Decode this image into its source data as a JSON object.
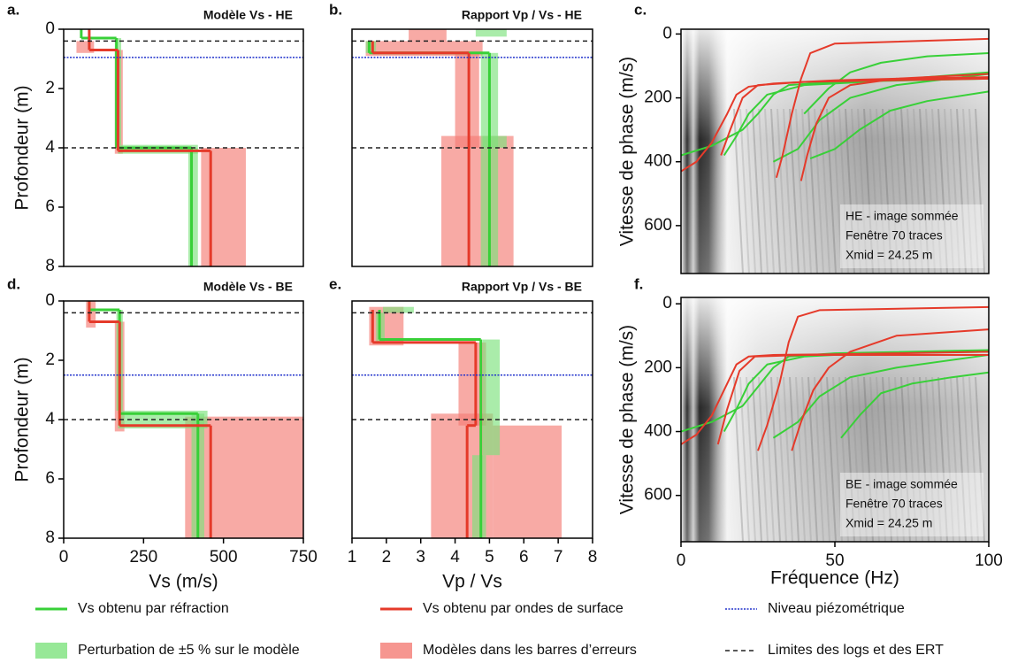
{
  "chart_data": [
    {
      "type": "profile",
      "panel": "a.",
      "title": "Modèle Vs - HE",
      "xlim": [
        0,
        750
      ],
      "ylim": [
        0,
        8
      ],
      "yticks": [
        0,
        2,
        4,
        6,
        8
      ],
      "ylabel": "Profondeur (m)",
      "refraction": {
        "color": "#38d038",
        "tops": [
          0,
          0.3,
          4.0
        ],
        "values": [
          55,
          165,
          400
        ]
      },
      "surface": {
        "color": "#e53a2a",
        "tops": [
          0,
          0.7,
          4.1
        ],
        "values": [
          80,
          170,
          460
        ]
      },
      "perturbation": {
        "color": "#7de27d",
        "layers": [
          {
            "depth": [
              0.3,
              3.9
            ],
            "range": [
              160,
              180
            ]
          },
          {
            "depth": [
              3.9,
              4.2
            ],
            "range": [
              170,
              420
            ]
          },
          {
            "depth": [
              4.0,
              8
            ],
            "range": [
              390,
              420
            ]
          }
        ]
      },
      "error_models": {
        "color": "#f47c74",
        "layers": [
          {
            "depth": [
              0.4,
              0.8
            ],
            "range": [
              40,
              95
            ]
          },
          {
            "depth": [
              0.7,
              4.2
            ],
            "range": [
              160,
              185
            ]
          },
          {
            "depth": [
              4.0,
              8
            ],
            "range": [
              430,
              570
            ]
          }
        ]
      },
      "water_level": {
        "color": "#2233cc",
        "depth": 0.95
      },
      "log_limits": {
        "color": "#222",
        "depths": [
          0.4,
          4.0
        ]
      }
    },
    {
      "type": "profile",
      "panel": "b.",
      "title": "Rapport Vp / Vs - HE",
      "xlim": [
        1,
        8
      ],
      "ylim": [
        0,
        8
      ],
      "refraction": {
        "color": "#38d038",
        "tops": [
          0.4,
          0.8
        ],
        "values": [
          1.5,
          5.0
        ]
      },
      "surface": {
        "color": "#e53a2a",
        "tops": [
          0.4,
          0.8
        ],
        "values": [
          1.6,
          4.4
        ]
      },
      "perturbation": {
        "color": "#7de27d",
        "layers": [
          {
            "depth": [
              0,
              0.25
            ],
            "range": [
              4.6,
              5.5
            ]
          },
          {
            "depth": [
              0.4,
              0.8
            ],
            "range": [
              1.4,
              1.7
            ]
          },
          {
            "depth": [
              0.8,
              8
            ],
            "range": [
              4.75,
              5.25
            ]
          },
          {
            "depth": [
              3.6,
              4.0
            ],
            "range": [
              4.8,
              5.5
            ]
          }
        ]
      },
      "error_models": {
        "color": "#f47c74",
        "layers": [
          {
            "depth": [
              0,
              0.4
            ],
            "range": [
              2.65,
              3.75
            ]
          },
          {
            "depth": [
              0.4,
              0.9
            ],
            "range": [
              1.4,
              4.8
            ]
          },
          {
            "depth": [
              0.8,
              4.0
            ],
            "range": [
              4.0,
              4.7
            ]
          },
          {
            "depth": [
              3.6,
              8
            ],
            "range": [
              3.6,
              5.7
            ]
          }
        ]
      },
      "water_level": {
        "color": "#2233cc",
        "depth": 0.95
      },
      "log_limits": {
        "color": "#222",
        "depths": [
          0.4,
          4.0
        ]
      }
    },
    {
      "type": "dispersion",
      "panel": "c.",
      "xlim": [
        0,
        100
      ],
      "ylim": [
        -15,
        750
      ],
      "yticks": [
        0,
        200,
        400,
        600
      ],
      "ylabel": "Vitesse de phase (m/s)",
      "annotation": [
        "HE - image sommée",
        "Fenêtre 70 traces",
        "Xmid = 24.25 m"
      ],
      "curves": [
        {
          "color": "#38d038",
          "x": [
            0,
            10,
            20,
            25,
            30,
            35,
            50,
            100
          ],
          "y": [
            380,
            350,
            300,
            250,
            190,
            160,
            150,
            140
          ]
        },
        {
          "color": "#38d038",
          "x": [
            14,
            18,
            22,
            28,
            40,
            60,
            100
          ],
          "y": [
            380,
            320,
            250,
            190,
            160,
            150,
            120
          ]
        },
        {
          "color": "#38d038",
          "x": [
            30,
            38,
            45,
            55,
            70,
            100
          ],
          "y": [
            400,
            360,
            270,
            200,
            160,
            125
          ]
        },
        {
          "color": "#38d038",
          "x": [
            42,
            50,
            58,
            68,
            80,
            100
          ],
          "y": [
            390,
            360,
            300,
            240,
            210,
            180
          ]
        },
        {
          "color": "#38d038",
          "x": [
            40,
            48,
            55,
            65,
            80,
            100
          ],
          "y": [
            250,
            170,
            120,
            90,
            70,
            60
          ]
        },
        {
          "color": "#e53a2a",
          "x": [
            0,
            5,
            10,
            15,
            18,
            22,
            30,
            50,
            70,
            100
          ],
          "y": [
            430,
            400,
            340,
            250,
            190,
            165,
            155,
            145,
            140,
            135
          ]
        },
        {
          "color": "#e53a2a",
          "x": [
            13,
            16,
            20,
            25,
            40,
            100
          ],
          "y": [
            380,
            300,
            200,
            160,
            150,
            140
          ]
        },
        {
          "color": "#e53a2a",
          "x": [
            31,
            33,
            36,
            39,
            42,
            50,
            100
          ],
          "y": [
            450,
            380,
            250,
            140,
            60,
            30,
            15
          ]
        },
        {
          "color": "#e53a2a",
          "x": [
            39,
            41,
            44,
            48,
            55,
            70,
            100
          ],
          "y": [
            460,
            380,
            280,
            200,
            160,
            140,
            125
          ]
        }
      ]
    },
    {
      "type": "profile",
      "panel": "d.",
      "title": "Modèle Vs - BE",
      "xlim": [
        0,
        750
      ],
      "xticks": [
        0,
        250,
        500,
        750
      ],
      "xlabel": "Vs (m/s)",
      "ylim": [
        0,
        8
      ],
      "yticks": [
        0,
        2,
        4,
        6,
        8
      ],
      "ylabel": "Profondeur (m)",
      "refraction": {
        "color": "#38d038",
        "tops": [
          0,
          0.3,
          3.8
        ],
        "values": [
          80,
          175,
          420
        ]
      },
      "surface": {
        "color": "#e53a2a",
        "tops": [
          0,
          0.7,
          4.2
        ],
        "values": [
          80,
          175,
          460
        ]
      },
      "perturbation": {
        "color": "#7de27d",
        "layers": [
          {
            "depth": [
              0.3,
              3.7
            ],
            "range": [
              165,
              185
            ]
          },
          {
            "depth": [
              3.7,
              4.3
            ],
            "range": [
              170,
              450
            ]
          },
          {
            "depth": [
              3.8,
              8
            ],
            "range": [
              400,
              440
            ]
          }
        ]
      },
      "error_models": {
        "color": "#f47c74",
        "layers": [
          {
            "depth": [
              0,
              0.9
            ],
            "range": [
              70,
              100
            ]
          },
          {
            "depth": [
              0.7,
              4.4
            ],
            "range": [
              160,
              190
            ]
          },
          {
            "depth": [
              3.9,
              8
            ],
            "range": [
              380,
              750
            ]
          }
        ]
      },
      "water_level": {
        "color": "#2233cc",
        "depth": 2.5
      },
      "log_limits": {
        "color": "#222",
        "depths": [
          0.4,
          4.0
        ]
      }
    },
    {
      "type": "profile",
      "panel": "e.",
      "title": "Rapport Vp / Vs - BE",
      "xlim": [
        1,
        8
      ],
      "xticks": [
        1,
        2,
        3,
        4,
        5,
        6,
        7,
        8
      ],
      "xlabel": "Vp / Vs",
      "ylim": [
        0,
        8
      ],
      "refraction": {
        "color": "#38d038",
        "tops": [
          0.3,
          1.3
        ],
        "values": [
          1.8,
          4.75
        ]
      },
      "surface": {
        "color": "#e53a2a",
        "tops": [
          0.3,
          1.4,
          4.2
        ],
        "values": [
          1.6,
          4.6,
          4.35
        ]
      },
      "perturbation": {
        "color": "#7de27d",
        "layers": [
          {
            "depth": [
              0.2,
              0.4
            ],
            "range": [
              1.9,
              2.8
            ]
          },
          {
            "depth": [
              0.4,
              1.4
            ],
            "range": [
              1.7,
              1.95
            ]
          },
          {
            "depth": [
              1.3,
              5.2
            ],
            "range": [
              4.8,
              5.3
            ]
          },
          {
            "depth": [
              5.2,
              8
            ],
            "range": [
              4.5,
              4.9
            ]
          }
        ]
      },
      "error_models": {
        "color": "#f47c74",
        "layers": [
          {
            "depth": [
              0.2,
              1.5
            ],
            "range": [
              1.5,
              2.5
            ]
          },
          {
            "depth": [
              1.4,
              4.2
            ],
            "range": [
              4.1,
              4.9
            ]
          },
          {
            "depth": [
              3.8,
              8
            ],
            "range": [
              3.3,
              5.1
            ]
          },
          {
            "depth": [
              4.2,
              8
            ],
            "range": [
              5.1,
              7.1
            ]
          }
        ]
      },
      "water_level": {
        "color": "#2233cc",
        "depth": 2.5
      },
      "log_limits": {
        "color": "#222",
        "depths": [
          0.4,
          4.0
        ]
      }
    },
    {
      "type": "dispersion",
      "panel": "f.",
      "xlim": [
        0,
        100
      ],
      "xticks": [
        0,
        50,
        100
      ],
      "xlabel": "Fréquence (Hz)",
      "ylim": [
        -20,
        745
      ],
      "yticks": [
        0,
        200,
        400,
        600
      ],
      "ylabel": "Vitesse de phase (m/s)",
      "annotation": [
        "BE - image sommée",
        "Fenêtre 70 traces",
        "Xmid = 24.25 m"
      ],
      "curves": [
        {
          "color": "#38d038",
          "x": [
            0,
            10,
            20,
            25,
            30,
            35,
            50,
            100
          ],
          "y": [
            400,
            370,
            320,
            260,
            200,
            165,
            155,
            145
          ]
        },
        {
          "color": "#38d038",
          "x": [
            14,
            18,
            22,
            28,
            40,
            60,
            100
          ],
          "y": [
            400,
            330,
            250,
            190,
            165,
            155,
            150
          ]
        },
        {
          "color": "#38d038",
          "x": [
            30,
            38,
            45,
            55,
            70,
            100
          ],
          "y": [
            420,
            370,
            290,
            230,
            200,
            160
          ]
        },
        {
          "color": "#38d038",
          "x": [
            52,
            58,
            65,
            75,
            88,
            100
          ],
          "y": [
            420,
            350,
            280,
            250,
            230,
            215
          ]
        },
        {
          "color": "#e53a2a",
          "x": [
            0,
            5,
            10,
            15,
            18,
            22,
            30,
            50,
            70,
            100
          ],
          "y": [
            440,
            410,
            350,
            250,
            190,
            165,
            160,
            158,
            155,
            150
          ]
        },
        {
          "color": "#e53a2a",
          "x": [
            12,
            15,
            19,
            24,
            40,
            100
          ],
          "y": [
            440,
            330,
            210,
            165,
            160,
            160
          ]
        },
        {
          "color": "#e53a2a",
          "x": [
            25,
            28,
            32,
            35,
            38,
            45,
            100
          ],
          "y": [
            460,
            380,
            250,
            120,
            40,
            20,
            10
          ]
        },
        {
          "color": "#e53a2a",
          "x": [
            36,
            39,
            43,
            48,
            55,
            70,
            100
          ],
          "y": [
            460,
            370,
            270,
            200,
            150,
            100,
            80
          ]
        }
      ]
    }
  ],
  "legend": [
    {
      "label": "Vs obtenu par réfraction",
      "color": "#38d038",
      "marker": "line"
    },
    {
      "label": "Vs obtenu par ondes de surface",
      "color": "#e53a2a",
      "marker": "line"
    },
    {
      "label": "Niveau piézométrique",
      "color": "#2233cc",
      "marker": "dotted"
    },
    {
      "label": "Perturbation de ±5 % sur le modèle",
      "color": "#7de27d",
      "marker": "patch"
    },
    {
      "label": "Modèles dans les barres d’erreurs",
      "color": "#f47c74",
      "marker": "patch"
    },
    {
      "label": "Limites des logs et des ERT",
      "color": "#222",
      "marker": "dashed"
    }
  ]
}
